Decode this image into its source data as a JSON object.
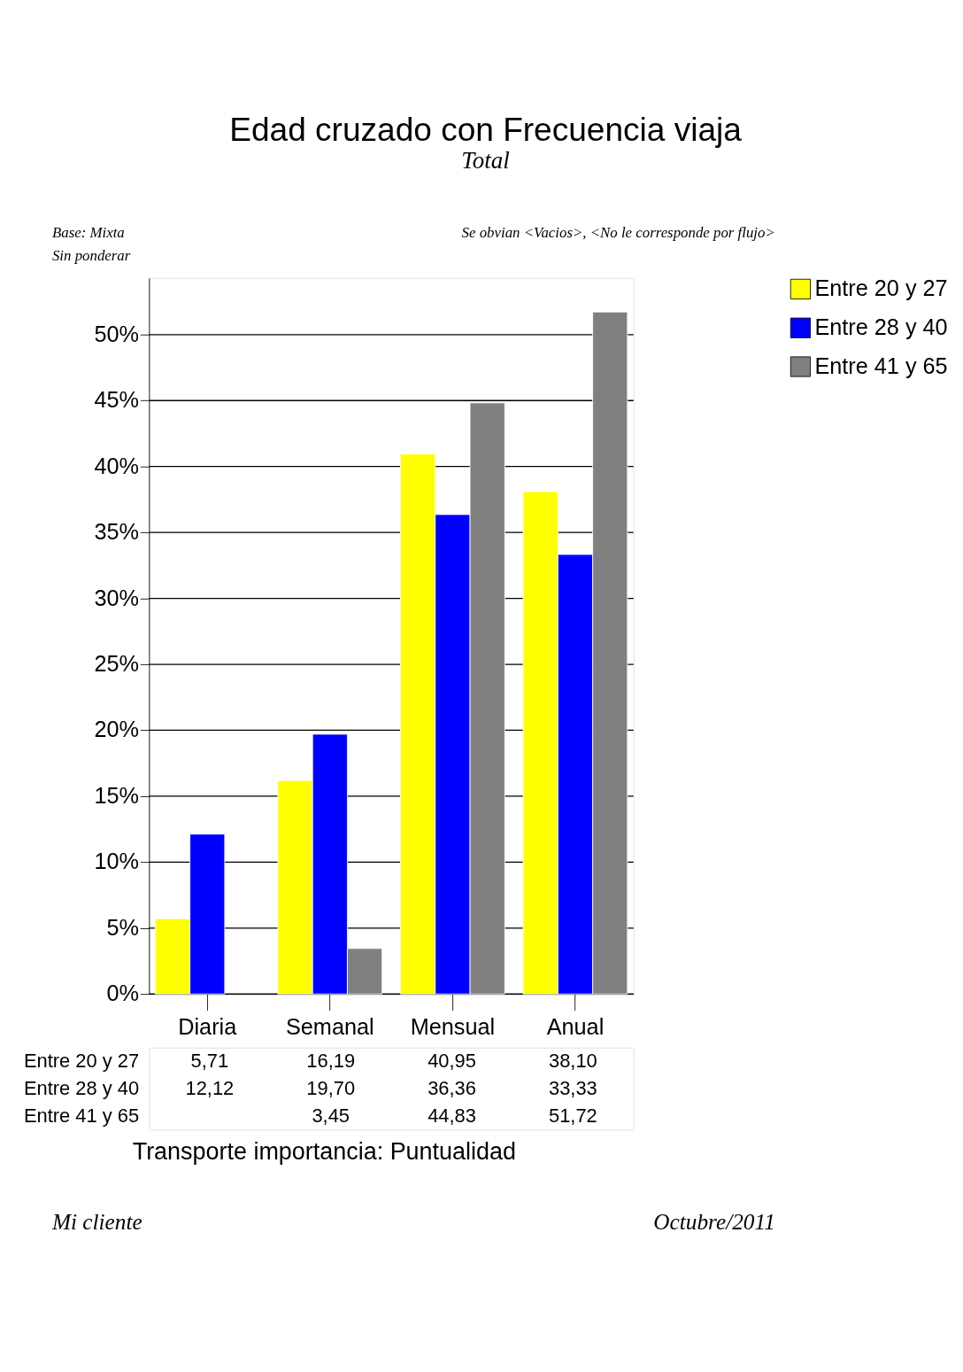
{
  "chart_data": {
    "type": "bar",
    "title": "Edad cruzado con Frecuencia viaja",
    "subtitle": "Total",
    "xlabel": "Transporte importancia: Puntualidad",
    "categories": [
      "Diaria",
      "Semanal",
      "Mensual",
      "Anual"
    ],
    "series": [
      {
        "name": "Entre 20 y 27",
        "color": "#ffff00",
        "values": [
          5.71,
          16.19,
          40.95,
          38.1
        ],
        "value_labels": [
          "5,71",
          "16,19",
          "40,95",
          "38,10"
        ]
      },
      {
        "name": "Entre 28 y 40",
        "color": "#0000ff",
        "values": [
          12.12,
          19.7,
          36.36,
          33.33
        ],
        "value_labels": [
          "12,12",
          "19,70",
          "36,36",
          "33,33"
        ]
      },
      {
        "name": "Entre 41 y 65",
        "color": "#808080",
        "values": [
          null,
          3.45,
          44.83,
          51.72
        ],
        "value_labels": [
          null,
          "3,45",
          "44,83",
          "51,72"
        ]
      }
    ],
    "ylim": [
      0,
      54.3
    ],
    "yticks": [
      {
        "value": 0,
        "label": "0%"
      },
      {
        "value": 5,
        "label": "5%"
      },
      {
        "value": 10,
        "label": "10%"
      },
      {
        "value": 15,
        "label": "15%"
      },
      {
        "value": 20,
        "label": "20%"
      },
      {
        "value": 25,
        "label": "25%"
      },
      {
        "value": 30,
        "label": "30%"
      },
      {
        "value": 35,
        "label": "35%"
      },
      {
        "value": 40,
        "label": "40%"
      },
      {
        "value": 45,
        "label": "45%"
      },
      {
        "value": 50,
        "label": "50%"
      }
    ],
    "grid": "y",
    "legend": "top right",
    "annotations": [
      "Base: Mixta",
      "Sin ponderar",
      "Se obvian <Vacios>, <No le corresponde por flujo>",
      "Mi cliente",
      "Octubre/2011"
    ]
  }
}
